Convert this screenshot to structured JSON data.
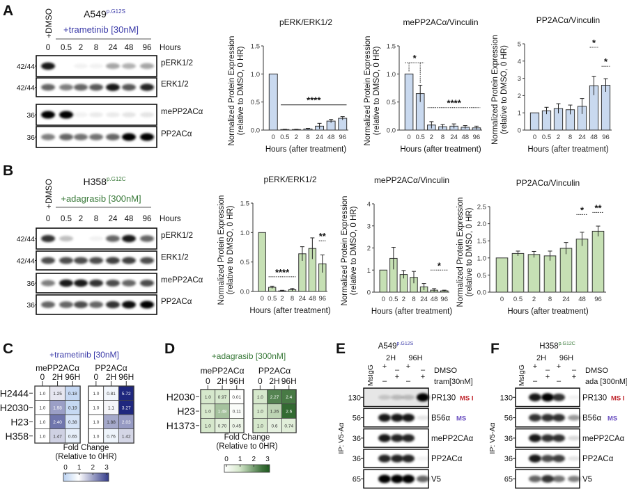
{
  "panel_letters": {
    "A": "A",
    "B": "B",
    "C": "C",
    "D": "D",
    "E": "E",
    "F": "F"
  },
  "blots": [
    {
      "cell_line": "A549",
      "mutation": "p.G12S",
      "control": "+DMSO",
      "treatment": "+trametinib [30nM]",
      "treatment_color": "#3a3aa8",
      "lanes": [
        "0",
        "0.5",
        "2",
        "8",
        "24",
        "48",
        "96"
      ],
      "lane_unit": "Hours",
      "rows": [
        {
          "label": "pERK1/2",
          "mw": "42/44",
          "bands": [
            0.9,
            0.0,
            0.05,
            0.05,
            0.35,
            0.3,
            0.35
          ]
        },
        {
          "label": "ERK1/2",
          "mw": "42/44",
          "bands": [
            0.6,
            0.5,
            0.6,
            0.65,
            0.9,
            0.65,
            0.85
          ]
        },
        {
          "label": "mePP2ACα",
          "mw": "36",
          "bands": [
            1.0,
            1.0,
            0.05,
            0.08,
            0.08,
            0.1,
            0.1
          ]
        },
        {
          "label": "PP2ACα",
          "mw": "36",
          "bands": [
            0.5,
            0.6,
            0.55,
            0.55,
            0.6,
            1.0,
            1.0
          ]
        }
      ]
    },
    {
      "cell_line": "H358",
      "mutation": "p.G12C",
      "control": "+DMSO",
      "treatment": "+adagrasib [300nM]",
      "treatment_color": "#3a7a3a",
      "lanes": [
        "0",
        "0.5",
        "2",
        "8",
        "24",
        "48",
        "96"
      ],
      "lane_unit": "Hours",
      "rows": [
        {
          "label": "pERK1/2",
          "mw": "42/44",
          "bands": [
            0.8,
            0.25,
            0.0,
            0.05,
            0.6,
            0.9,
            0.6
          ]
        },
        {
          "label": "ERK1/2",
          "mw": "42/44",
          "bands": [
            0.7,
            0.7,
            0.7,
            0.7,
            0.75,
            0.75,
            0.7
          ]
        },
        {
          "label": "mePP2ACα",
          "mw": "36",
          "bands": [
            0.5,
            0.9,
            0.9,
            0.8,
            0.7,
            0.6,
            0.7
          ]
        },
        {
          "label": "PP2ACα",
          "mw": "36",
          "bands": [
            0.6,
            0.6,
            0.7,
            0.6,
            0.8,
            0.95,
            1.0
          ]
        }
      ]
    }
  ],
  "chart_data": [
    {
      "type": "bar",
      "title": "pERK/ERK1/2",
      "ylabel": "Normalized Protein Expression",
      "ylabel2": "(relative to DMSO, 0 HR)",
      "xlabel": "Hours (after treatment)",
      "categories": [
        "0",
        "0.5",
        "2",
        "8",
        "24",
        "48",
        "96"
      ],
      "values": [
        1.0,
        0.01,
        0.01,
        0.02,
        0.07,
        0.16,
        0.21
      ],
      "sem": [
        0,
        0.005,
        0.005,
        0.01,
        0.05,
        0.03,
        0.03
      ],
      "ylim": [
        0,
        1.5
      ],
      "yticks": [
        "0.0",
        "0.5",
        "1.0",
        "1.5"
      ],
      "color": "#c9d9ef",
      "significance": [
        {
          "label": "****",
          "from": 1,
          "to": 6,
          "y": 0.45,
          "style": "solid"
        }
      ]
    },
    {
      "type": "bar",
      "title": "mePP2ACα/Vinculin",
      "ylabel": "Normalized Protein Expression",
      "ylabel2": "(relative to DMSO, 0 HR)",
      "xlabel": "Hours (after treatment)",
      "categories": [
        "0",
        "0.5",
        "2",
        "8",
        "24",
        "48",
        "96"
      ],
      "values": [
        1.0,
        0.65,
        0.09,
        0.06,
        0.07,
        0.05,
        0.04
      ],
      "sem": [
        0,
        0.15,
        0.06,
        0.04,
        0.04,
        0.03,
        0.03
      ],
      "ylim": [
        0,
        1.5
      ],
      "yticks": [
        "0.0",
        "0.5",
        "1.0",
        "1.5"
      ],
      "color": "#c9d9ef",
      "significance": [
        {
          "label": "*",
          "from": 0,
          "to": 1,
          "y": 1.2,
          "style": "bracket"
        },
        {
          "label": "****",
          "from": 2,
          "to": 6,
          "y": 0.4,
          "style": "dotted"
        }
      ]
    },
    {
      "type": "bar",
      "title": "PP2ACα/Vinculin",
      "ylabel": "Normalized Protein Expression",
      "ylabel2": "(relative to DMSO, 0 HR)",
      "xlabel": "Hours (after treatment)",
      "categories": [
        "0",
        "0.5",
        "2",
        "8",
        "24",
        "48",
        "96"
      ],
      "values": [
        1.0,
        1.12,
        1.25,
        1.18,
        1.38,
        2.57,
        2.6
      ],
      "sem": [
        0,
        0.2,
        0.28,
        0.27,
        0.45,
        0.55,
        0.38
      ],
      "ylim": [
        0,
        5
      ],
      "yticks": [
        "0",
        "1",
        "2",
        "3",
        "4",
        "5"
      ],
      "color": "#c9d9ef",
      "significance": [
        {
          "label": "*",
          "from": 5,
          "to": 5,
          "y": 4.8,
          "style": "dotted"
        },
        {
          "label": "*",
          "from": 6,
          "to": 6,
          "y": 3.7,
          "style": "dotted"
        }
      ]
    },
    {
      "type": "bar",
      "title": "pERK/ERK1/2",
      "ylabel": "Normalized Protein Expression",
      "ylabel2": "(relative to DMSO, 0 HR)",
      "xlabel": "Hours (after treatment)",
      "categories": [
        "0",
        "0.5",
        "2",
        "8",
        "24",
        "48",
        "96"
      ],
      "values": [
        1.0,
        0.07,
        0.01,
        0.03,
        0.64,
        0.73,
        0.47
      ],
      "sem": [
        0,
        0.02,
        0.01,
        0.02,
        0.12,
        0.18,
        0.15
      ],
      "ylim": [
        0,
        1.5
      ],
      "yticks": [
        "0.0",
        "0.5",
        "1.0",
        "1.5"
      ],
      "color": "#c6e0b4",
      "significance": [
        {
          "label": "****",
          "from": 1,
          "to": 3,
          "y": 0.25,
          "style": "dotted"
        },
        {
          "label": "**",
          "from": 6,
          "to": 6,
          "y": 0.86,
          "style": "dotted"
        }
      ]
    },
    {
      "type": "bar",
      "title": "mePP2ACα/Vinculin",
      "ylabel": "Normalized Protein Expression",
      "ylabel2": "(relative to DMSO, 0 HR)",
      "xlabel": "Hours (after treatment)",
      "categories": [
        "0",
        "0.5",
        "2",
        "8",
        "24",
        "48",
        "96"
      ],
      "values": [
        1.0,
        1.53,
        0.8,
        0.67,
        0.24,
        0.09,
        0.06
      ],
      "sem": [
        0,
        0.5,
        0.18,
        0.27,
        0.15,
        0.07,
        0.03
      ],
      "ylim": [
        0,
        4
      ],
      "yticks": [
        "0",
        "1",
        "2",
        "3",
        "4"
      ],
      "color": "#c6e0b4",
      "significance": [
        {
          "label": "*",
          "from": 5,
          "to": 6,
          "y": 1.0,
          "style": "dotted"
        }
      ]
    },
    {
      "type": "bar",
      "title": "PP2ACα/Vinculin",
      "ylabel": "Normalized Protein Expression",
      "ylabel2": "(relative to DMSO, 0 HR)",
      "xlabel": "Hours (after treatment)",
      "categories": [
        "0",
        "0.5",
        "2",
        "8",
        "24",
        "48",
        "96"
      ],
      "values": [
        1.0,
        1.13,
        1.1,
        1.06,
        1.28,
        1.55,
        1.78
      ],
      "sem": [
        0,
        0.07,
        0.09,
        0.14,
        0.17,
        0.2,
        0.15
      ],
      "ylim": [
        0,
        2.5
      ],
      "yticks": [
        "0.0",
        "0.5",
        "1.0",
        "1.5",
        "2.0",
        "2.5"
      ],
      "color": "#c6e0b4",
      "significance": [
        {
          "label": "*",
          "from": 5,
          "to": 5,
          "y": 2.27,
          "style": "dotted"
        },
        {
          "label": "**",
          "from": 6,
          "to": 6,
          "y": 2.33,
          "style": "dotted"
        }
      ]
    },
    {
      "type": "heatmap",
      "treatment": "+trametinib [30nM]",
      "treatment_color": "#3a3aa8",
      "rows": [
        "H2444",
        "H2030",
        "H23",
        "H358"
      ],
      "columns": [
        "0",
        "2H",
        "96H"
      ],
      "matrices": [
        {
          "name": "mePP2ACα",
          "values": [
            [
              "1.0",
              "1.25",
              "0.18"
            ],
            [
              "1.0",
              "1.98",
              "0.19"
            ],
            [
              "1.0",
              "2.40",
              "0.38"
            ],
            [
              "1.0",
              "1.47",
              "0.65"
            ]
          ]
        },
        {
          "name": "PP2ACα",
          "values": [
            [
              "1.0",
              "0.81",
              "5.72"
            ],
            [
              "1.0",
              "1.1",
              "3.27"
            ],
            [
              "1.0",
              "1.88",
              "2.03"
            ],
            [
              "1.0",
              "0.76",
              "1.42"
            ]
          ]
        }
      ],
      "colorbar": {
        "label": "Fold Change",
        "sublabel": "(Relative to 0HR)",
        "ticks": [
          "0",
          "1",
          "2",
          "3"
        ]
      },
      "colors": {
        "low": "#b9d0f0",
        "mid": "#ffffff",
        "high": "#1f277e"
      }
    },
    {
      "type": "heatmap",
      "treatment": "+adagrasib [300nM]",
      "treatment_color": "#3a7a3a",
      "rows": [
        "H2030",
        "H23",
        "H1373"
      ],
      "columns": [
        "0",
        "2H",
        "96H"
      ],
      "matrices": [
        {
          "name": "mePP2ACα",
          "values": [
            [
              "1.0",
              "0.97",
              "0.01"
            ],
            [
              "1.0",
              "1.48",
              "0.11"
            ],
            [
              "1.0",
              "0.70",
              "0.45"
            ]
          ]
        },
        {
          "name": "PP2ACα",
          "values": [
            [
              "1.0",
              "2.27",
              "2.4"
            ],
            [
              "1.0",
              "1.26",
              "2.6"
            ],
            [
              "1.0",
              "0.6",
              "0.74"
            ]
          ]
        }
      ],
      "colorbar": {
        "label": "Fold Change",
        "sublabel": "(Relative to 0HR)",
        "ticks": [
          "0",
          "1",
          "2",
          "3"
        ]
      },
      "colors": {
        "low": "#ffffff",
        "mid": "#d6e8cc",
        "high": "#1f5a1f"
      }
    }
  ],
  "ip_blots": [
    {
      "cell_line": "A549",
      "mutation": "p.G12S",
      "mutation_color": "#3a3aa8",
      "ip_label": "IP: V5-Aα",
      "control_lane": "MsIgG",
      "times": [
        "2H",
        "96H"
      ],
      "cond1_label": "DMSO",
      "cond1": [
        "+",
        "–",
        "+",
        "–"
      ],
      "cond2_label": "tram[30nM]",
      "cond2": [
        "–",
        "+",
        "–",
        "+"
      ],
      "rows": [
        {
          "label": "PR130",
          "mw": "130",
          "tag": "MS I",
          "tag_color": "#c0262d",
          "bands": [
            0,
            0.15,
            0.2,
            0.2,
            1.0
          ]
        },
        {
          "label": "B56α",
          "mw": "56",
          "tag": "MS",
          "tag_color": "#6a4fc0",
          "bands": [
            0,
            0.9,
            0.9,
            0.9,
            0.1
          ]
        },
        {
          "label": "mePP2CAα",
          "mw": "36",
          "bands": [
            0,
            0.9,
            0.85,
            0.85,
            0
          ]
        },
        {
          "label": "PP2ACα",
          "mw": "36",
          "bands": [
            0,
            0.85,
            0.85,
            0.85,
            0.05
          ]
        },
        {
          "label": "V5",
          "mw": "65",
          "bands": [
            0,
            1.0,
            1.0,
            1.0,
            0.6
          ]
        }
      ]
    },
    {
      "cell_line": "H358",
      "mutation": "p.G12C",
      "mutation_color": "#3a7a3a",
      "ip_label": "IP: V5-Aα",
      "control_lane": "MsIgG",
      "times": [
        "2H",
        "96H"
      ],
      "cond1_label": "DMSO",
      "cond1": [
        "+",
        "–",
        "+",
        "–"
      ],
      "cond2_label": "ada [300nM]",
      "cond2": [
        "–",
        "+",
        "–",
        "+"
      ],
      "rows": [
        {
          "label": "PR130",
          "mw": "130",
          "tag": "MS I",
          "tag_color": "#c0262d",
          "bands": [
            0,
            0.9,
            1.0,
            0.8,
            0.05
          ]
        },
        {
          "label": "B56α",
          "mw": "56",
          "tag": "MS",
          "tag_color": "#6a4fc0",
          "bands": [
            0,
            0.8,
            0.8,
            0.8,
            0.4
          ]
        },
        {
          "label": "mePP2CAα",
          "mw": "36",
          "bands": [
            0,
            0.9,
            0.8,
            0.8,
            0.15
          ]
        },
        {
          "label": "PP2ACα",
          "mw": "36",
          "bands": [
            0,
            0.9,
            0.7,
            0.75,
            0.1
          ]
        },
        {
          "label": "V5",
          "mw": "65",
          "bands": [
            0,
            0.6,
            0.8,
            0.55,
            0.5
          ]
        }
      ]
    }
  ]
}
